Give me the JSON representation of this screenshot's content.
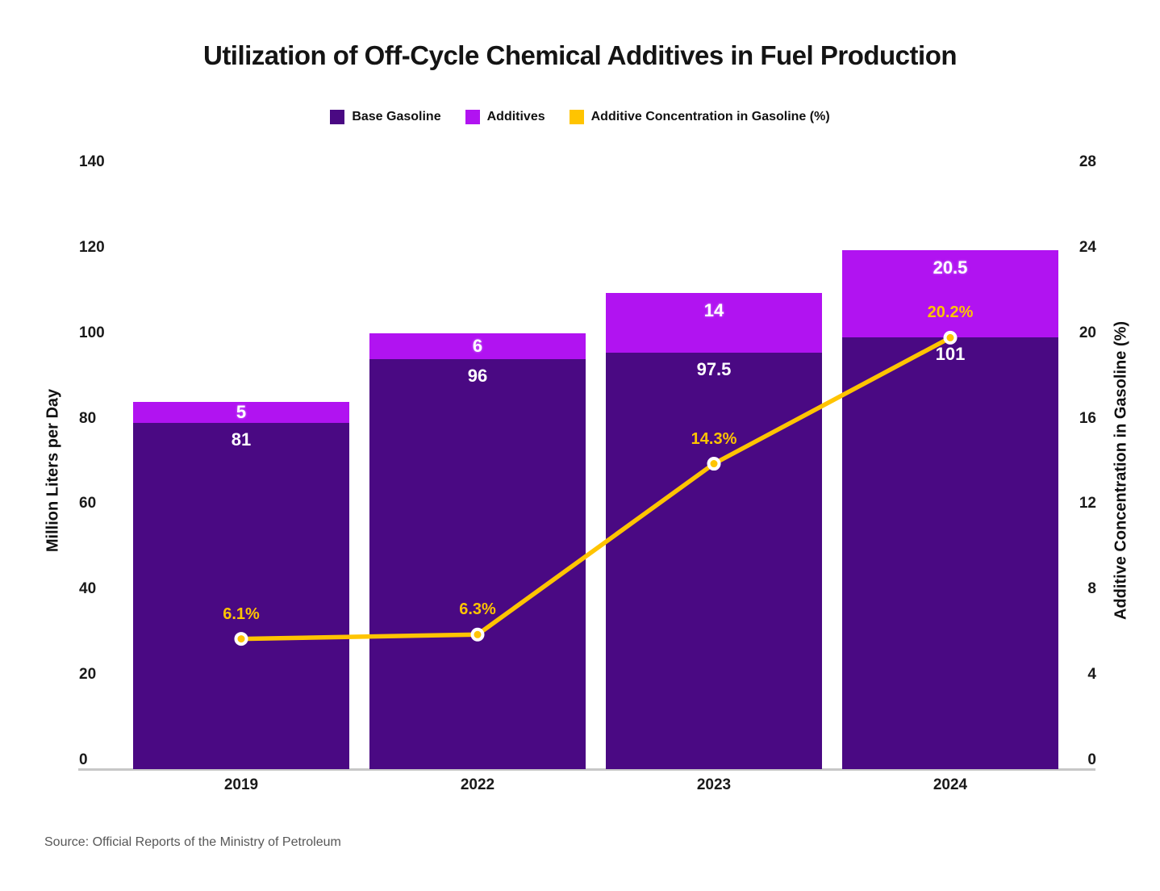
{
  "title": "Utilization of Off-Cycle Chemical Additives in Fuel Production",
  "source": "Source: Official Reports of the Ministry of Petroleum",
  "colors": {
    "base_gasoline": "#4A0983",
    "additives": "#B113F1",
    "concentration_line": "#FFC400",
    "axis_line": "#C7C7C7",
    "bar_value_text": "#FFFFFF",
    "pct_label_text": "#FFC400",
    "source_text": "#575757"
  },
  "legend": {
    "items": [
      {
        "label": "Base Gasoline",
        "color": "#4A0983"
      },
      {
        "label": "Additives",
        "color": "#B113F1"
      },
      {
        "label": "Additive Concentration in Gasoline (%)",
        "color": "#FFC400"
      }
    ]
  },
  "chart_data": {
    "type": "bar",
    "categories": [
      "2019",
      "2022",
      "2023",
      "2024"
    ],
    "series": [
      {
        "name": "Base Gasoline",
        "type": "bar",
        "stack": "fuel",
        "color": "#4A0983",
        "values": [
          81,
          96,
          97.5,
          101
        ],
        "value_labels": [
          "81",
          "96",
          "97.5",
          "101"
        ]
      },
      {
        "name": "Additives",
        "type": "bar",
        "stack": "fuel",
        "color": "#B113F1",
        "values": [
          5,
          6,
          14,
          20.5
        ],
        "value_labels": [
          "5",
          "6",
          "14",
          "20.5"
        ]
      },
      {
        "name": "Additive Concentration in Gasoline (%)",
        "type": "line",
        "y_axis": "right",
        "color": "#FFC400",
        "marker": "circle-white-ring",
        "values": [
          6.1,
          6.3,
          14.3,
          20.2
        ],
        "value_labels": [
          "6.1%",
          "6.3%",
          "14.3%",
          "20.2%"
        ]
      }
    ],
    "title": "Utilization of Off-Cycle Chemical Additives in Fuel Production",
    "xlabel": "",
    "ylabel": "Million Liters per Day",
    "ylabel_right": "Additive Concentration in Gasoline (%)",
    "ylim": [
      0,
      140
    ],
    "ylim_right": [
      0,
      28
    ],
    "left_axis_ticks": [
      0,
      20,
      40,
      60,
      80,
      100,
      120,
      140
    ],
    "right_axis_ticks": [
      0,
      4,
      8,
      12,
      16,
      20,
      24,
      28
    ],
    "grid": false,
    "legend_position": "top"
  }
}
